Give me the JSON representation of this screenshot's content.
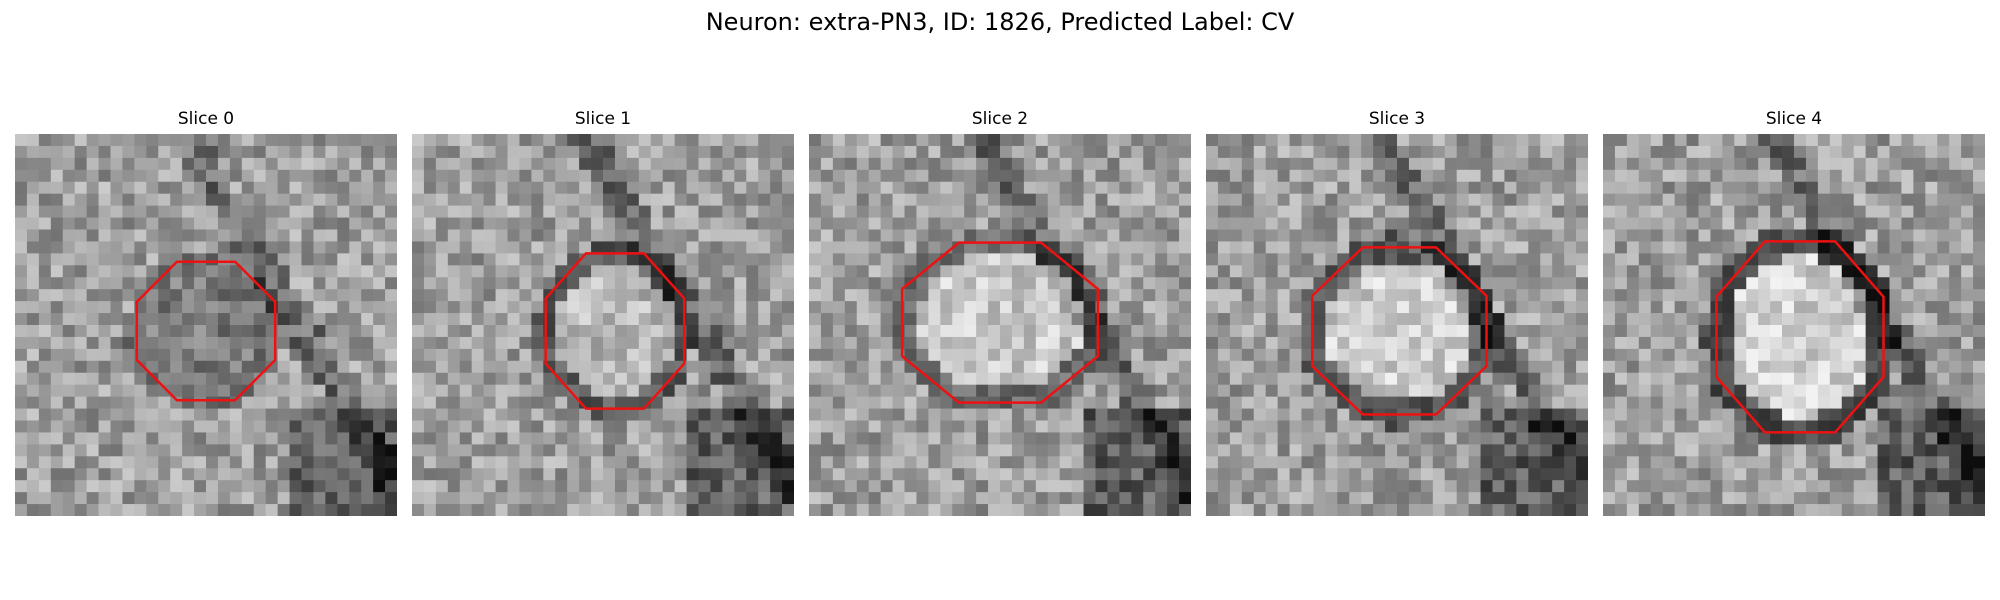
{
  "figure": {
    "title": "Neuron: extra-PN3, ID: 1826, Predicted Label: CV"
  },
  "panels": [
    {
      "title": "Slice 0"
    },
    {
      "title": "Slice 1"
    },
    {
      "title": "Slice 2"
    },
    {
      "title": "Slice 3"
    },
    {
      "title": "Slice 4"
    }
  ],
  "colors": {
    "contour": "#ee1111",
    "background": "#ffffff"
  }
}
